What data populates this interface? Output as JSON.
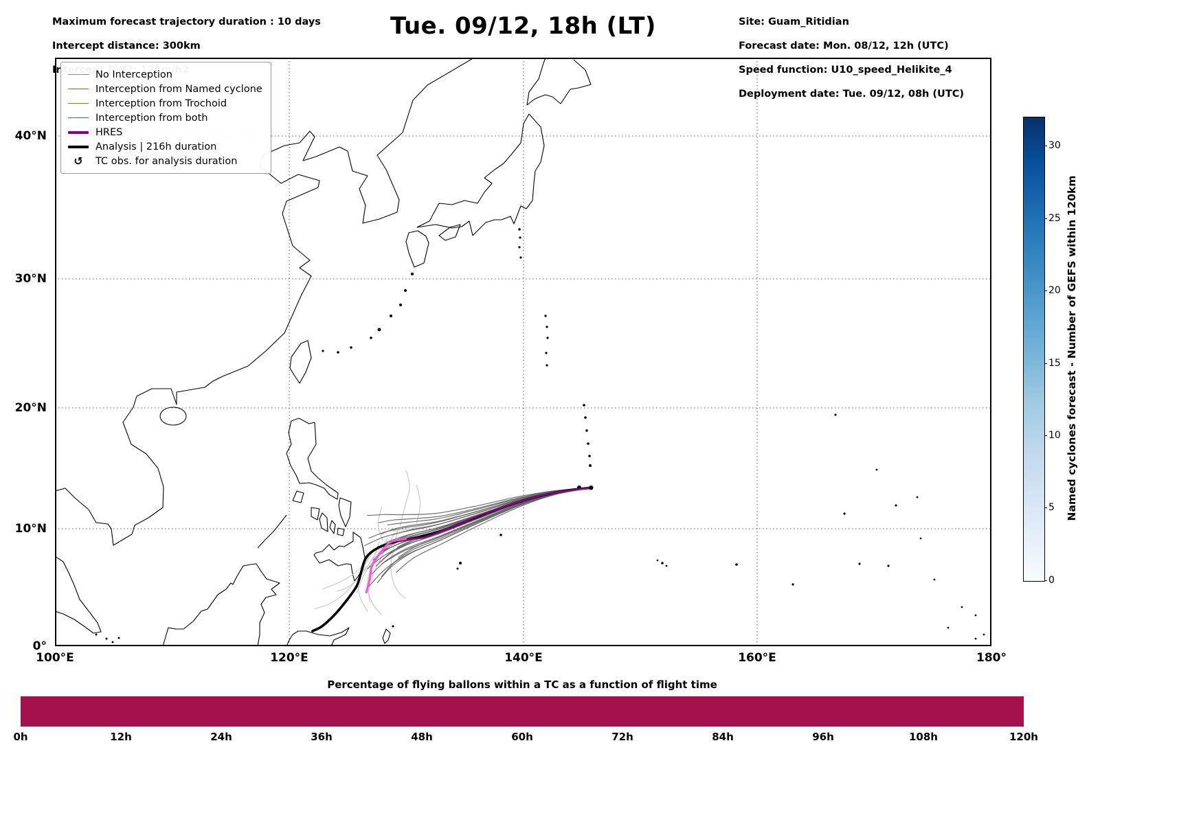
{
  "header": {
    "info_left": {
      "line1": "Maximum forecast trajectory duration : 10 days",
      "line2": "Intercept distance: 300km",
      "line3": "Intercept RW2: 12km/h2"
    },
    "title": "Tue. 09/12, 18h (LT)",
    "info_right": {
      "line1": "Site: Guam_Ritidian",
      "line2": "Forecast date: Mon. 08/12, 12h (UTC)",
      "line3": "Speed function: U10_speed_Helikite_4",
      "line4": "Deployment date: Tue. 09/12, 08h (UTC)"
    }
  },
  "legend": {
    "items": [
      {
        "label": "No Interception",
        "type": "line",
        "color": "#8a8a8a",
        "weight": 1.6
      },
      {
        "label": "Interception from Named cyclone",
        "type": "line",
        "color": "#ff4500",
        "weight": 1.6
      },
      {
        "label": "Interception from Trochoid",
        "type": "line",
        "color": "#808000",
        "weight": 1.6
      },
      {
        "label": "Interception from both",
        "type": "line",
        "color": "#1f8a1f",
        "weight": 1.6
      },
      {
        "label": "HRES",
        "type": "line",
        "color": "#8b008b",
        "weight": 4
      },
      {
        "label": "Analysis | 216h duration",
        "type": "line",
        "color": "#000000",
        "weight": 4
      },
      {
        "label": "TC obs. for analysis duration",
        "type": "marker",
        "symbol": "↺"
      }
    ]
  },
  "map": {
    "x_ticks": [
      "100°E",
      "120°E",
      "140°E",
      "160°E",
      "180°"
    ],
    "y_ticks": [
      "40°N",
      "30°N",
      "20°N",
      "10°N",
      "0°"
    ]
  },
  "colorbar": {
    "label": "Named cyclones forecast - Number of GEFS within 120km",
    "ticks": [
      0,
      5,
      10,
      15,
      20,
      25,
      30
    ],
    "min": 0,
    "max": 32,
    "color_low": "#f7fbff",
    "color_high": "#08306b"
  },
  "bottom_chart": {
    "title": "Percentage of flying ballons within a TC as a function of flight time",
    "ticks": [
      "0h",
      "12h",
      "24h",
      "36h",
      "48h",
      "60h",
      "72h",
      "84h",
      "96h",
      "108h",
      "120h"
    ],
    "bar_color": "#a5114a",
    "value_percent": 100
  },
  "chart_data": {
    "type": "line",
    "title": "Tue. 09/12, 18h (LT)",
    "projection": "mercator",
    "lon_range": [
      100,
      180
    ],
    "lat_range": [
      0,
      45
    ],
    "lon_gridlines": [
      120,
      140,
      160
    ],
    "lat_gridlines": [
      10,
      20,
      30,
      40
    ],
    "lon_tick_values": [
      100,
      120,
      140,
      160,
      180
    ],
    "lat_tick_values": [
      40,
      30,
      20,
      10,
      0
    ],
    "site_point": {
      "name": "Guam_Ritidian",
      "lon": 145.8,
      "lat": 13.45
    },
    "colors": {
      "ensemble_dark": "#5f5f5f",
      "ensemble_light": "#cfcfcf",
      "analysis": "#000000",
      "hres_head": "#ff50d8",
      "hres_tail": "#8b008b"
    },
    "analysis_track": [
      [
        122.0,
        1.3
      ],
      [
        122.8,
        1.7
      ],
      [
        123.8,
        2.6
      ],
      [
        124.9,
        3.9
      ],
      [
        125.8,
        5.2
      ],
      [
        126.2,
        6.5
      ],
      [
        126.6,
        7.6
      ],
      [
        127.6,
        8.4
      ],
      [
        129.2,
        8.95
      ],
      [
        131.0,
        9.3
      ],
      [
        133.2,
        9.9
      ],
      [
        135.8,
        10.9
      ],
      [
        138.5,
        11.9
      ],
      [
        141.2,
        12.7
      ],
      [
        143.6,
        13.2
      ],
      [
        145.8,
        13.45
      ]
    ],
    "hres_track": [
      [
        126.6,
        4.6
      ],
      [
        126.9,
        5.8
      ],
      [
        127.1,
        6.9
      ],
      [
        127.9,
        8.1
      ],
      [
        128.7,
        8.9
      ],
      [
        130.1,
        9.15
      ],
      [
        131.6,
        9.3
      ],
      [
        133.8,
        10.1
      ],
      [
        136.2,
        11.1
      ],
      [
        138.8,
        12.0
      ],
      [
        141.5,
        12.8
      ],
      [
        143.8,
        13.2
      ],
      [
        145.8,
        13.45
      ]
    ],
    "hres_split_index": 5,
    "gefs_ensemble": {
      "count": 24,
      "base_track": [
        [
          127.3,
          7.6
        ],
        [
          128.6,
          8.5
        ],
        [
          130.3,
          9.2
        ],
        [
          132.8,
          9.9
        ],
        [
          136.0,
          11.0
        ],
        [
          139.5,
          12.2
        ],
        [
          142.6,
          13.0
        ],
        [
          145.8,
          13.45
        ]
      ],
      "weights": [
        1.5,
        1.15,
        0.85,
        0.6,
        0.38,
        0.2,
        0.08,
        0
      ],
      "spreads": [
        -1.9,
        -1.65,
        -1.45,
        -1.25,
        -1.1,
        -0.95,
        -0.8,
        -0.65,
        -0.5,
        -0.38,
        -0.26,
        -0.15,
        -0.05,
        0.06,
        0.18,
        0.32,
        0.48,
        0.66,
        0.86,
        1.08,
        1.32,
        1.6,
        1.95,
        2.35
      ],
      "lon_jitter": [
        0.6,
        -0.4,
        0.2,
        -0.7,
        0.5,
        -0.2,
        0.8,
        -0.5,
        0.1,
        -0.8,
        0.4,
        -0.1,
        0.7,
        -0.6,
        0.3,
        -0.3,
        0.6,
        -0.7,
        0.2,
        -0.4,
        0.5,
        -0.2,
        0.3,
        -0.5
      ]
    },
    "light_tracks": [
      [
        [
          129.0,
          9.6
        ],
        [
          128.2,
          8.2
        ],
        [
          127.4,
          6.6
        ],
        [
          126.8,
          5.0
        ],
        [
          126.9,
          3.8
        ]
      ],
      [
        [
          128.4,
          9.2
        ],
        [
          127.4,
          7.6
        ],
        [
          126.4,
          6.1
        ],
        [
          125.8,
          4.6
        ]
      ],
      [
        [
          129.3,
          9.9
        ],
        [
          128.9,
          8.3
        ],
        [
          128.7,
          6.6
        ],
        [
          129.1,
          5.0
        ],
        [
          129.9,
          4.1
        ]
      ],
      [
        [
          127.9,
          8.7
        ],
        [
          127.0,
          7.3
        ],
        [
          126.2,
          6.1
        ],
        [
          125.1,
          5.1
        ],
        [
          124.1,
          4.7
        ]
      ],
      [
        [
          129.5,
          10.3
        ],
        [
          129.9,
          11.9
        ],
        [
          130.3,
          13.5
        ],
        [
          130.0,
          14.9
        ]
      ],
      [
        [
          130.9,
          10.5
        ],
        [
          131.2,
          12.1
        ],
        [
          130.9,
          13.7
        ]
      ],
      [
        [
          128.9,
          9.8
        ],
        [
          130.3,
          10.0
        ],
        [
          131.9,
          10.4
        ],
        [
          133.7,
          10.9
        ],
        [
          135.3,
          11.5
        ]
      ],
      [
        [
          127.3,
          8.3
        ],
        [
          126.5,
          7.0
        ],
        [
          125.9,
          5.6
        ],
        [
          126.1,
          4.1
        ],
        [
          126.7,
          3.0
        ]
      ],
      [
        [
          127.0,
          7.9
        ],
        [
          126.1,
          6.7
        ],
        [
          125.1,
          5.9
        ],
        [
          123.9,
          5.3
        ],
        [
          122.9,
          4.9
        ]
      ],
      [
        [
          127.7,
          8.9
        ],
        [
          127.1,
          7.1
        ],
        [
          126.7,
          5.3
        ],
        [
          127.1,
          3.7
        ],
        [
          127.9,
          2.7
        ]
      ],
      [
        [
          128.0,
          9.0
        ],
        [
          127.6,
          10.4
        ],
        [
          127.9,
          11.8
        ]
      ],
      [
        [
          126.6,
          6.8
        ],
        [
          125.6,
          5.5
        ],
        [
          124.6,
          4.4
        ],
        [
          123.4,
          3.6
        ],
        [
          122.2,
          3.2
        ]
      ]
    ]
  }
}
